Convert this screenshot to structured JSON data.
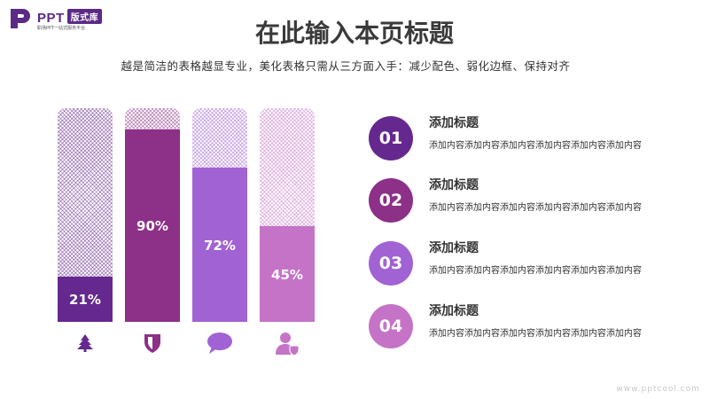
{
  "logo": {
    "brand": "PPT",
    "badge": "版式库",
    "tagline": "职场PPT一站式服务平台"
  },
  "header": {
    "title": "在此输入本页标题",
    "subtitle": "越是简洁的表格越显专业，美化表格只需从三方面入手：减少配色、弱化边框、保持对齐"
  },
  "colors": {
    "c1": "#65288f",
    "c2": "#8c3088",
    "c3": "#a162d3",
    "c4": "#c573c7"
  },
  "bars": [
    {
      "value": 21,
      "label": "21%",
      "color": "#65288f",
      "icon": "tree-icon"
    },
    {
      "value": 90,
      "label": "90%",
      "color": "#8c3088",
      "icon": "shield-icon"
    },
    {
      "value": 72,
      "label": "72%",
      "color": "#a162d3",
      "icon": "chat-bubble-icon"
    },
    {
      "value": 45,
      "label": "45%",
      "color": "#c573c7",
      "icon": "user-shield-icon"
    }
  ],
  "items": [
    {
      "number": "01",
      "title": "添加标题",
      "text": "添加内容添加内容添加内容添加内容添加内容添加内容"
    },
    {
      "number": "02",
      "title": "添加标题",
      "text": "添加内容添加内容添加内容添加内容添加内容添加内容"
    },
    {
      "number": "03",
      "title": "添加标题",
      "text": "添加内容添加内容添加内容添加内容添加内容添加内容"
    },
    {
      "number": "04",
      "title": "添加标题",
      "text": "添加内容添加内容添加内容添加内容添加内容添加内容"
    }
  ],
  "watermark": "www.pptcool.com"
}
